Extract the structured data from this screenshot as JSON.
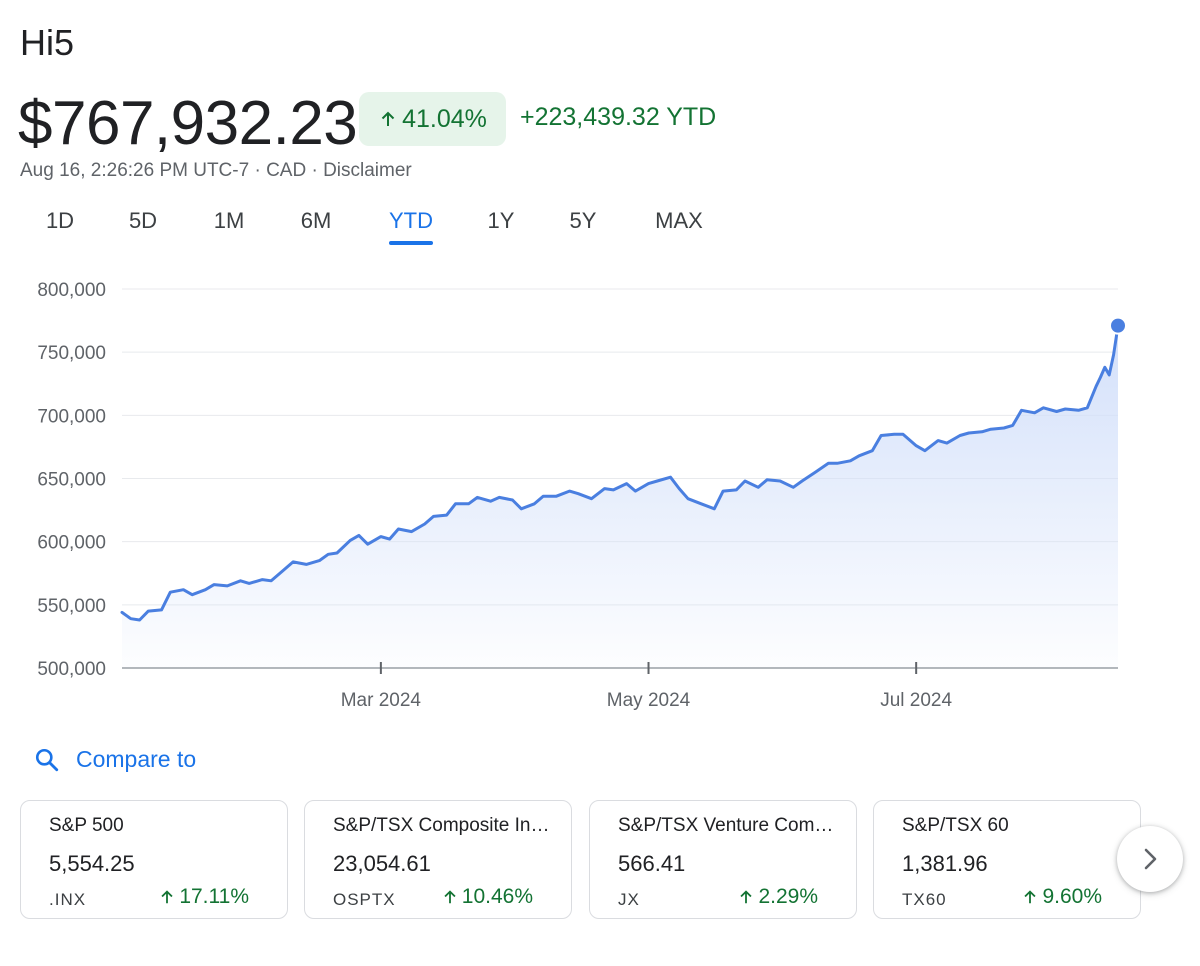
{
  "header": {
    "title": "Hi5",
    "price": "$767,932.23",
    "change_percent": "41.04%",
    "change_amount": "+223,439.32 YTD",
    "timestamp": "Aug 16, 2:26:26 PM UTC-7",
    "currency": "CAD",
    "disclaimer": "Disclaimer",
    "separator": "·",
    "positive_color": "#137333",
    "positive_bg": "#e6f4ea"
  },
  "range_tabs": {
    "items": [
      {
        "label": "1D",
        "active": false
      },
      {
        "label": "5D",
        "active": false
      },
      {
        "label": "1M",
        "active": false
      },
      {
        "label": "6M",
        "active": false
      },
      {
        "label": "YTD",
        "active": true
      },
      {
        "label": "1Y",
        "active": false
      },
      {
        "label": "5Y",
        "active": false
      },
      {
        "label": "MAX",
        "active": false
      }
    ],
    "accent_color": "#1a73e8"
  },
  "chart_data": {
    "type": "area",
    "title": "",
    "xlabel": "",
    "ylabel": "",
    "x_range": [
      "2024-01-02",
      "2024-08-16"
    ],
    "x_ticks": [
      {
        "date": "2024-03-01",
        "label": "Mar 2024"
      },
      {
        "date": "2024-05-01",
        "label": "May 2024"
      },
      {
        "date": "2024-07-01",
        "label": "Jul 2024"
      }
    ],
    "y_ticks": [
      {
        "value": 500000,
        "label": "500,000"
      },
      {
        "value": 550000,
        "label": "550,000"
      },
      {
        "value": 600000,
        "label": "600,000"
      },
      {
        "value": 650000,
        "label": "650,000"
      },
      {
        "value": 700000,
        "label": "700,000"
      },
      {
        "value": 750000,
        "label": "750,000"
      },
      {
        "value": 800000,
        "label": "800,000"
      }
    ],
    "ylim": [
      500000,
      800000
    ],
    "grid": true,
    "line_color": "#4a7fe0",
    "fill_color": "#d3e0fa",
    "series": [
      {
        "points": [
          [
            "2024-01-02",
            544000
          ],
          [
            "2024-01-04",
            539000
          ],
          [
            "2024-01-06",
            538000
          ],
          [
            "2024-01-08",
            545000
          ],
          [
            "2024-01-11",
            546000
          ],
          [
            "2024-01-13",
            560000
          ],
          [
            "2024-01-16",
            562000
          ],
          [
            "2024-01-18",
            558000
          ],
          [
            "2024-01-21",
            562000
          ],
          [
            "2024-01-23",
            566000
          ],
          [
            "2024-01-26",
            565000
          ],
          [
            "2024-01-29",
            569000
          ],
          [
            "2024-01-31",
            567000
          ],
          [
            "2024-02-03",
            570000
          ],
          [
            "2024-02-05",
            569000
          ],
          [
            "2024-02-08",
            578000
          ],
          [
            "2024-02-10",
            584000
          ],
          [
            "2024-02-13",
            582000
          ],
          [
            "2024-02-16",
            585000
          ],
          [
            "2024-02-18",
            590000
          ],
          [
            "2024-02-20",
            591000
          ],
          [
            "2024-02-23",
            601000
          ],
          [
            "2024-02-25",
            605000
          ],
          [
            "2024-02-27",
            598000
          ],
          [
            "2024-03-01",
            604000
          ],
          [
            "2024-03-03",
            602000
          ],
          [
            "2024-03-05",
            610000
          ],
          [
            "2024-03-08",
            608000
          ],
          [
            "2024-03-11",
            614000
          ],
          [
            "2024-03-13",
            620000
          ],
          [
            "2024-03-16",
            621000
          ],
          [
            "2024-03-18",
            630000
          ],
          [
            "2024-03-21",
            630000
          ],
          [
            "2024-03-23",
            635000
          ],
          [
            "2024-03-26",
            632000
          ],
          [
            "2024-03-28",
            635000
          ],
          [
            "2024-03-31",
            633000
          ],
          [
            "2024-04-02",
            626000
          ],
          [
            "2024-04-05",
            630000
          ],
          [
            "2024-04-07",
            636000
          ],
          [
            "2024-04-10",
            636000
          ],
          [
            "2024-04-13",
            640000
          ],
          [
            "2024-04-15",
            638000
          ],
          [
            "2024-04-18",
            634000
          ],
          [
            "2024-04-21",
            642000
          ],
          [
            "2024-04-23",
            641000
          ],
          [
            "2024-04-26",
            646000
          ],
          [
            "2024-04-28",
            640000
          ],
          [
            "2024-05-01",
            646000
          ],
          [
            "2024-05-03",
            648000
          ],
          [
            "2024-05-06",
            651000
          ],
          [
            "2024-05-08",
            642000
          ],
          [
            "2024-05-10",
            634000
          ],
          [
            "2024-05-13",
            630000
          ],
          [
            "2024-05-16",
            626000
          ],
          [
            "2024-05-18",
            640000
          ],
          [
            "2024-05-21",
            641000
          ],
          [
            "2024-05-23",
            648000
          ],
          [
            "2024-05-26",
            643000
          ],
          [
            "2024-05-28",
            649000
          ],
          [
            "2024-05-31",
            648000
          ],
          [
            "2024-06-03",
            643000
          ],
          [
            "2024-06-05",
            648000
          ],
          [
            "2024-06-08",
            655000
          ],
          [
            "2024-06-11",
            662000
          ],
          [
            "2024-06-13",
            662000
          ],
          [
            "2024-06-16",
            664000
          ],
          [
            "2024-06-18",
            668000
          ],
          [
            "2024-06-21",
            672000
          ],
          [
            "2024-06-23",
            684000
          ],
          [
            "2024-06-26",
            685000
          ],
          [
            "2024-06-28",
            685000
          ],
          [
            "2024-07-01",
            676000
          ],
          [
            "2024-07-03",
            672000
          ],
          [
            "2024-07-06",
            680000
          ],
          [
            "2024-07-08",
            678000
          ],
          [
            "2024-07-11",
            684000
          ],
          [
            "2024-07-13",
            686000
          ],
          [
            "2024-07-16",
            687000
          ],
          [
            "2024-07-18",
            689000
          ],
          [
            "2024-07-21",
            690000
          ],
          [
            "2024-07-23",
            692000
          ],
          [
            "2024-07-25",
            704000
          ],
          [
            "2024-07-28",
            702000
          ],
          [
            "2024-07-30",
            706000
          ],
          [
            "2024-08-02",
            703000
          ],
          [
            "2024-08-04",
            705000
          ],
          [
            "2024-08-07",
            704000
          ],
          [
            "2024-08-09",
            706000
          ],
          [
            "2024-08-11",
            723000
          ],
          [
            "2024-08-12",
            730000
          ],
          [
            "2024-08-13",
            738000
          ],
          [
            "2024-08-14",
            732000
          ],
          [
            "2024-08-15",
            748000
          ],
          [
            "2024-08-16",
            771000
          ]
        ]
      }
    ],
    "end_marker": true
  },
  "compare": {
    "label": "Compare to",
    "icon": "search-icon",
    "cards": [
      {
        "name": "S&P 500",
        "value": "5,554.25",
        "ticker": ".INX",
        "change": "17.11%"
      },
      {
        "name": "S&P/TSX Composite Index",
        "value": "23,054.61",
        "ticker": "OSPTX",
        "change": "10.46%"
      },
      {
        "name": "S&P/TSX Venture Composite Index",
        "value": "566.41",
        "ticker": "JX",
        "change": "2.29%"
      },
      {
        "name": "S&P/TSX 60",
        "value": "1,381.96",
        "ticker": "TX60",
        "change": "9.60%"
      }
    ],
    "next_icon": "chevron-right-icon"
  }
}
